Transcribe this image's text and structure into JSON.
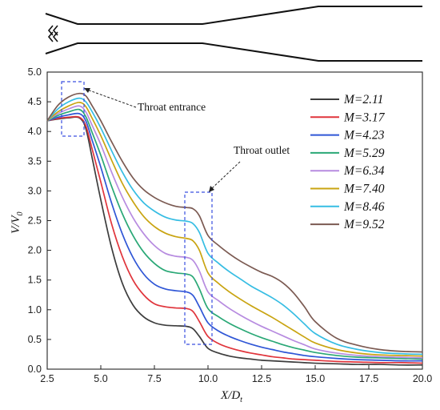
{
  "chart_data": {
    "type": "line",
    "xlabel_main": "X/D",
    "xlabel_sub": "t",
    "ylabel_main": "V/V",
    "ylabel_sub": "0",
    "xlim": [
      2.5,
      20.0
    ],
    "ylim": [
      0.0,
      5.0
    ],
    "xticks": [
      "2.5",
      "5.0",
      "7.5",
      "10.0",
      "12.5",
      "15.0",
      "17.5",
      "20.0"
    ],
    "yticks": [
      "0.0",
      "0.5",
      "1.0",
      "1.5",
      "2.0",
      "2.5",
      "3.0",
      "3.5",
      "4.0",
      "4.5",
      "5.0"
    ],
    "x": [
      2.5,
      3.0,
      3.5,
      4.0,
      4.3,
      4.6,
      5.0,
      5.5,
      6.0,
      6.5,
      7.0,
      7.5,
      8.0,
      8.5,
      9.0,
      9.3,
      9.6,
      10.0,
      10.5,
      11.0,
      11.5,
      12.0,
      12.5,
      13.0,
      13.5,
      14.0,
      14.5,
      15.0,
      16.0,
      17.0,
      18.0,
      19.0,
      20.0
    ],
    "legend_position": "right",
    "series": [
      {
        "name": "M=2.11",
        "color": "#3d3d3d",
        "values": [
          4.18,
          4.21,
          4.23,
          4.23,
          4.05,
          3.55,
          2.85,
          2.05,
          1.45,
          1.08,
          0.88,
          0.78,
          0.74,
          0.73,
          0.72,
          0.68,
          0.55,
          0.35,
          0.27,
          0.22,
          0.19,
          0.17,
          0.15,
          0.14,
          0.13,
          0.12,
          0.11,
          0.1,
          0.09,
          0.08,
          0.08,
          0.07,
          0.07
        ]
      },
      {
        "name": "M=3.17",
        "color": "#e0353c",
        "values": [
          4.18,
          4.22,
          4.24,
          4.24,
          4.1,
          3.7,
          3.15,
          2.45,
          1.9,
          1.5,
          1.25,
          1.1,
          1.05,
          1.03,
          1.02,
          0.97,
          0.8,
          0.55,
          0.43,
          0.36,
          0.31,
          0.27,
          0.24,
          0.21,
          0.19,
          0.17,
          0.16,
          0.15,
          0.13,
          0.12,
          0.11,
          0.11,
          0.1
        ]
      },
      {
        "name": "M=4.23",
        "color": "#2f56d6",
        "values": [
          4.18,
          4.24,
          4.28,
          4.3,
          4.18,
          3.85,
          3.4,
          2.8,
          2.28,
          1.88,
          1.6,
          1.43,
          1.35,
          1.32,
          1.3,
          1.24,
          1.05,
          0.78,
          0.64,
          0.55,
          0.48,
          0.42,
          0.37,
          0.33,
          0.29,
          0.26,
          0.23,
          0.21,
          0.18,
          0.16,
          0.15,
          0.14,
          0.14
        ]
      },
      {
        "name": "M=5.29",
        "color": "#2aa876",
        "values": [
          4.18,
          4.27,
          4.33,
          4.37,
          4.25,
          3.98,
          3.6,
          3.08,
          2.62,
          2.25,
          1.97,
          1.78,
          1.66,
          1.62,
          1.6,
          1.55,
          1.35,
          1.02,
          0.88,
          0.77,
          0.68,
          0.6,
          0.53,
          0.47,
          0.41,
          0.36,
          0.32,
          0.28,
          0.23,
          0.2,
          0.19,
          0.18,
          0.17
        ]
      },
      {
        "name": "M=6.34",
        "color": "#b78be0",
        "values": [
          4.18,
          4.3,
          4.38,
          4.43,
          4.33,
          4.1,
          3.78,
          3.32,
          2.9,
          2.55,
          2.28,
          2.08,
          1.95,
          1.9,
          1.88,
          1.83,
          1.65,
          1.3,
          1.15,
          1.02,
          0.91,
          0.81,
          0.72,
          0.64,
          0.56,
          0.48,
          0.41,
          0.34,
          0.27,
          0.23,
          0.21,
          0.2,
          0.19
        ]
      },
      {
        "name": "M=7.40",
        "color": "#c9a411",
        "values": [
          4.18,
          4.33,
          4.43,
          4.49,
          4.42,
          4.22,
          3.93,
          3.52,
          3.13,
          2.82,
          2.57,
          2.4,
          2.29,
          2.23,
          2.2,
          2.16,
          2.0,
          1.62,
          1.44,
          1.3,
          1.18,
          1.07,
          0.97,
          0.87,
          0.76,
          0.65,
          0.54,
          0.44,
          0.33,
          0.27,
          0.24,
          0.23,
          0.22
        ]
      },
      {
        "name": "M=8.46",
        "color": "#36bde3",
        "values": [
          4.18,
          4.38,
          4.5,
          4.56,
          4.5,
          4.33,
          4.06,
          3.68,
          3.32,
          3.02,
          2.8,
          2.66,
          2.56,
          2.51,
          2.49,
          2.45,
          2.3,
          1.95,
          1.78,
          1.64,
          1.52,
          1.4,
          1.3,
          1.2,
          1.08,
          0.93,
          0.76,
          0.6,
          0.42,
          0.33,
          0.28,
          0.26,
          0.25
        ]
      },
      {
        "name": "M=9.52",
        "color": "#7b5a52",
        "values": [
          4.18,
          4.44,
          4.58,
          4.64,
          4.6,
          4.43,
          4.18,
          3.83,
          3.5,
          3.22,
          3.02,
          2.89,
          2.8,
          2.74,
          2.72,
          2.7,
          2.58,
          2.25,
          2.08,
          1.94,
          1.82,
          1.72,
          1.63,
          1.56,
          1.45,
          1.28,
          1.05,
          0.8,
          0.52,
          0.4,
          0.33,
          0.3,
          0.29
        ]
      }
    ],
    "annotations": {
      "entrance_label": "Throat entrance",
      "outlet_label": "Throat outlet"
    }
  }
}
